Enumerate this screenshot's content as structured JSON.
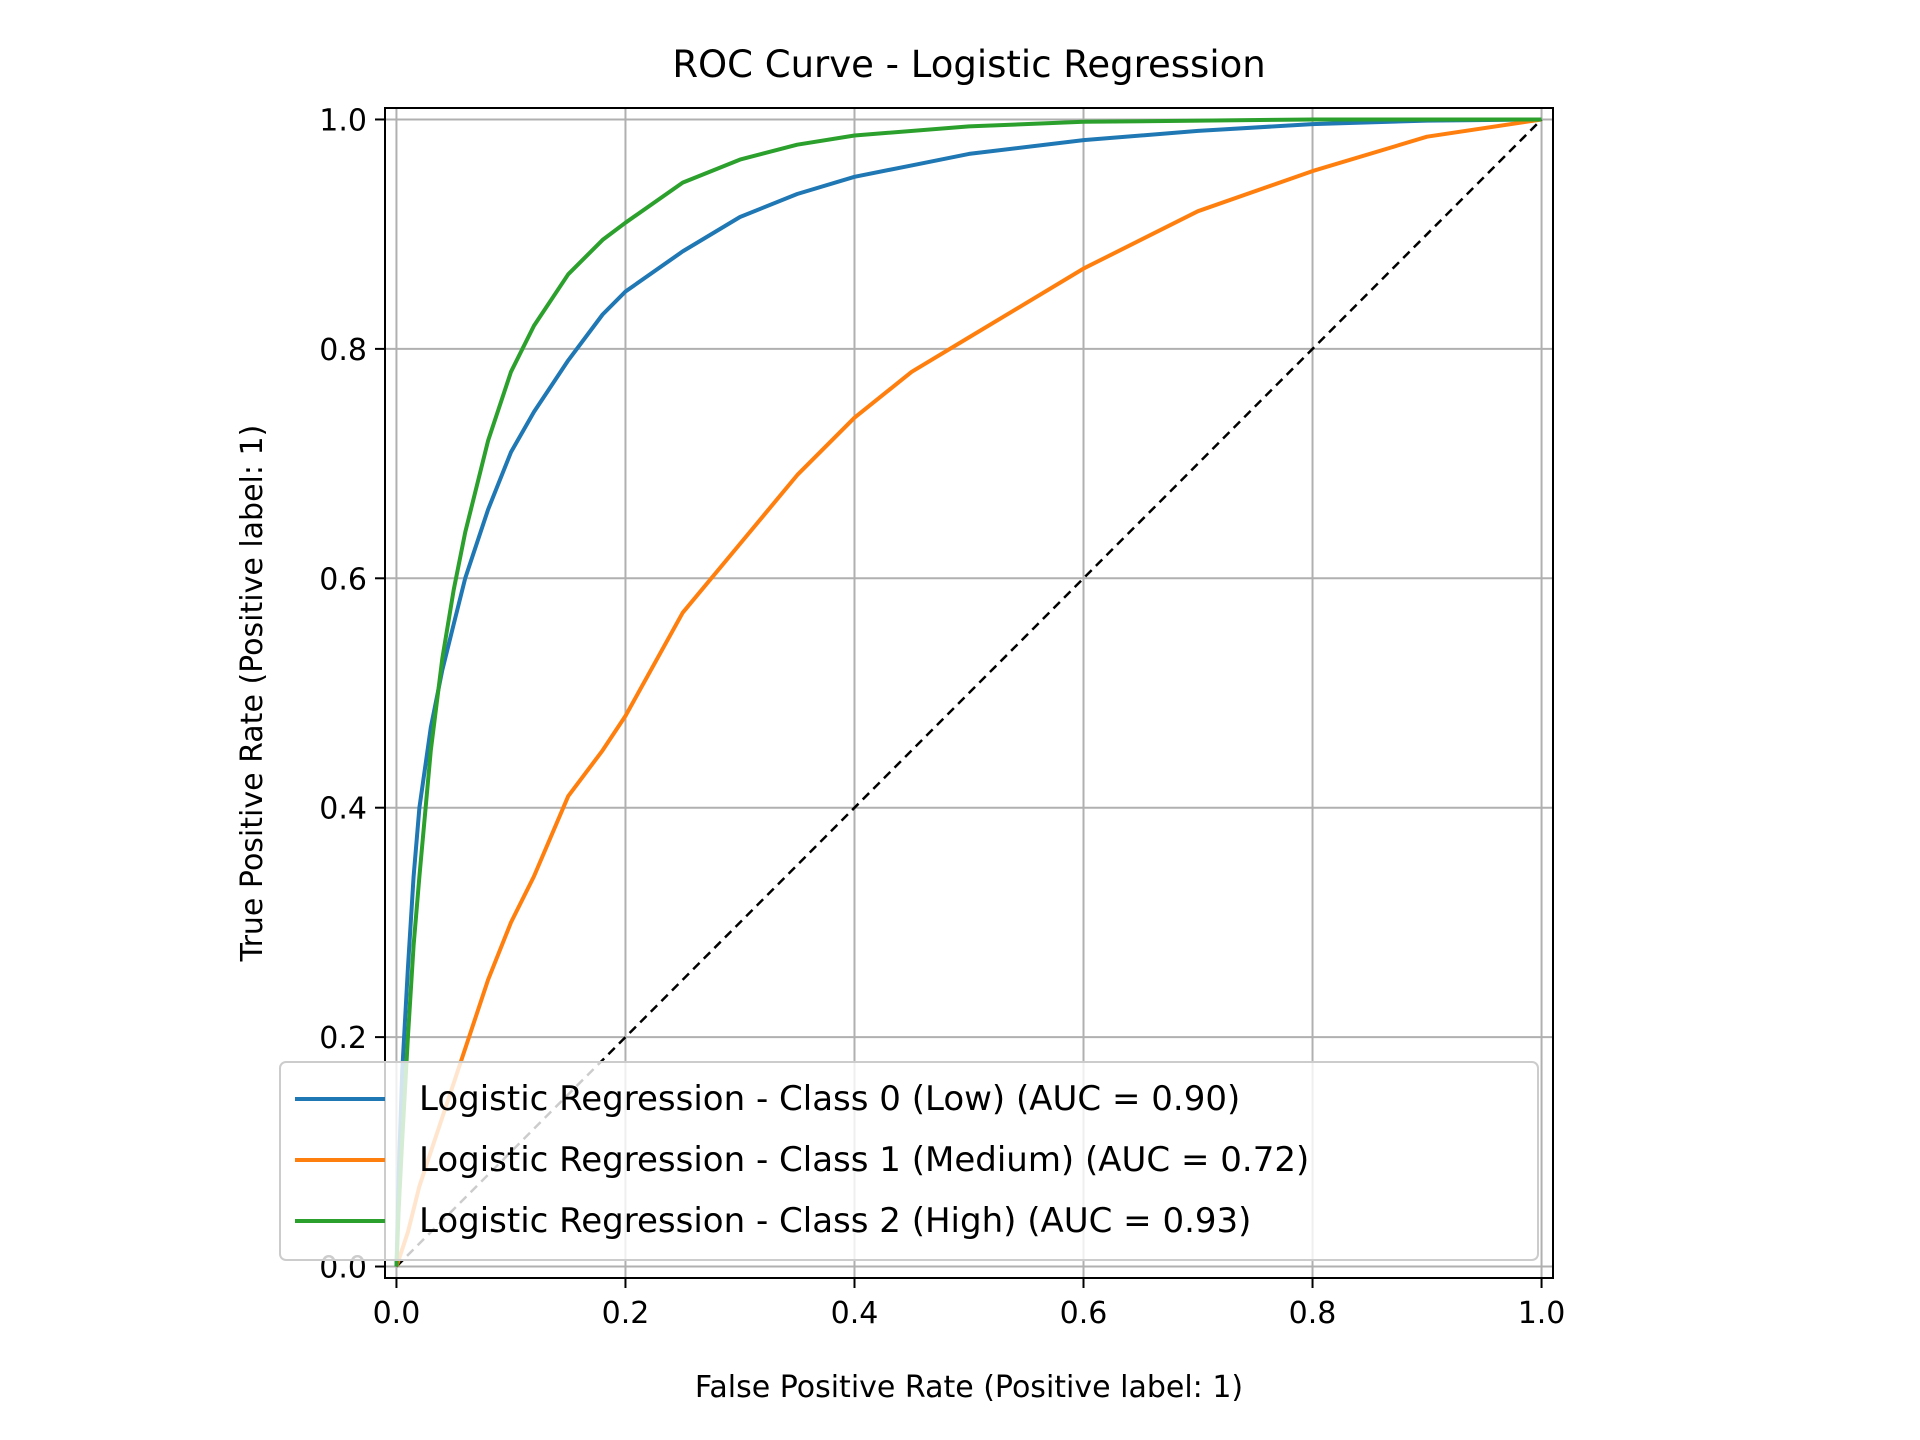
{
  "chart_data": {
    "type": "line",
    "title": "ROC Curve - Logistic Regression",
    "xlabel": "False Positive Rate (Positive label: 1)",
    "ylabel": "True Positive Rate (Positive label: 1)",
    "xlim": [
      -0.01,
      1.01
    ],
    "ylim": [
      -0.01,
      1.01
    ],
    "xticks": [
      "0.0",
      "0.2",
      "0.4",
      "0.6",
      "0.8",
      "1.0"
    ],
    "yticks": [
      "0.0",
      "0.2",
      "0.4",
      "0.6",
      "0.8",
      "1.0"
    ],
    "grid": true,
    "legend_position": "lower-right",
    "series": [
      {
        "name": "Logistic Regression - Class 0 (Low) (AUC = 0.90)",
        "color": "#1f77b4",
        "x": [
          0,
          0.002,
          0.005,
          0.01,
          0.015,
          0.02,
          0.03,
          0.04,
          0.05,
          0.06,
          0.08,
          0.1,
          0.12,
          0.15,
          0.18,
          0.2,
          0.25,
          0.3,
          0.35,
          0.4,
          0.45,
          0.5,
          0.6,
          0.7,
          0.8,
          0.9,
          1.0
        ],
        "y": [
          0,
          0.08,
          0.17,
          0.26,
          0.34,
          0.4,
          0.47,
          0.52,
          0.56,
          0.6,
          0.66,
          0.71,
          0.745,
          0.79,
          0.83,
          0.85,
          0.885,
          0.915,
          0.935,
          0.95,
          0.96,
          0.97,
          0.982,
          0.99,
          0.996,
          0.999,
          1.0
        ]
      },
      {
        "name": "Logistic Regression - Class 1 (Medium) (AUC = 0.72)",
        "color": "#ff7f0e",
        "x": [
          0,
          0.01,
          0.02,
          0.03,
          0.04,
          0.06,
          0.08,
          0.1,
          0.12,
          0.15,
          0.18,
          0.2,
          0.25,
          0.3,
          0.35,
          0.4,
          0.45,
          0.5,
          0.6,
          0.7,
          0.8,
          0.9,
          1.0
        ],
        "y": [
          0,
          0.03,
          0.07,
          0.1,
          0.13,
          0.19,
          0.25,
          0.3,
          0.34,
          0.41,
          0.45,
          0.48,
          0.57,
          0.63,
          0.69,
          0.74,
          0.78,
          0.81,
          0.87,
          0.92,
          0.955,
          0.985,
          1.0
        ]
      },
      {
        "name": "Logistic Regression - Class 2 (High) (AUC = 0.93)",
        "color": "#2ca02c",
        "x": [
          0,
          0.002,
          0.005,
          0.01,
          0.015,
          0.02,
          0.03,
          0.04,
          0.05,
          0.06,
          0.08,
          0.1,
          0.12,
          0.15,
          0.18,
          0.2,
          0.25,
          0.3,
          0.35,
          0.4,
          0.5,
          0.6,
          0.8,
          1.0
        ],
        "y": [
          0,
          0.05,
          0.11,
          0.2,
          0.28,
          0.34,
          0.45,
          0.53,
          0.59,
          0.64,
          0.72,
          0.78,
          0.82,
          0.865,
          0.895,
          0.91,
          0.945,
          0.965,
          0.978,
          0.986,
          0.994,
          0.998,
          1.0,
          1.0
        ]
      }
    ],
    "reference_line": {
      "x": [
        0,
        1
      ],
      "y": [
        0,
        1
      ],
      "color": "#000000",
      "style": "dashed"
    }
  }
}
